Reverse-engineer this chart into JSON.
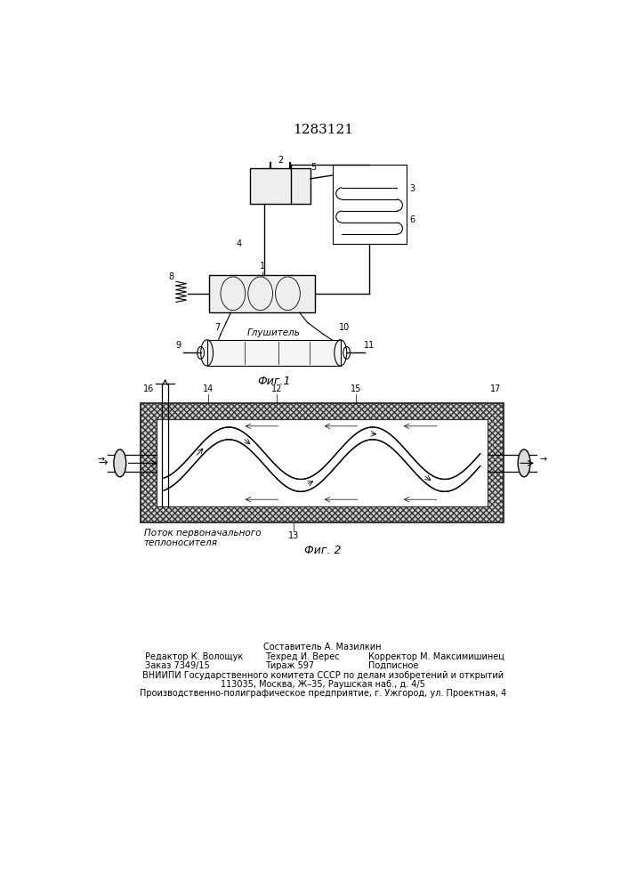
{
  "patent_number": "1283121",
  "fig1_label": "Фиг.1",
  "fig2_label": "Фиг. 2",
  "fig1_text_glusitel": "Глушитель",
  "fig2_text_potok": "Поток первоначального\nтеплоносителя",
  "footer_line1": "Составитель А. Мазилкин",
  "footer_line2_col1": "Редактор К. Волощук",
  "footer_line2_col2": "Техред И. Верес",
  "footer_line2_col3": "Корректор М. Максимишинец",
  "footer_line3_col1": "Заказ 7349/15",
  "footer_line3_col2": "Тираж 597",
  "footer_line3_col3": "Подписное",
  "footer_line4": "ВНИИПИ Государственного комитета СССР по делам изобретений и открытий",
  "footer_line5": "113035, Москва, Ж–35, Раушская наб., д. 4/5",
  "footer_line6": "Производственно-полиграфическое предприятие, г. Ужгород, ул. Проектная, 4",
  "bg_color": "#ffffff",
  "line_color": "#000000"
}
